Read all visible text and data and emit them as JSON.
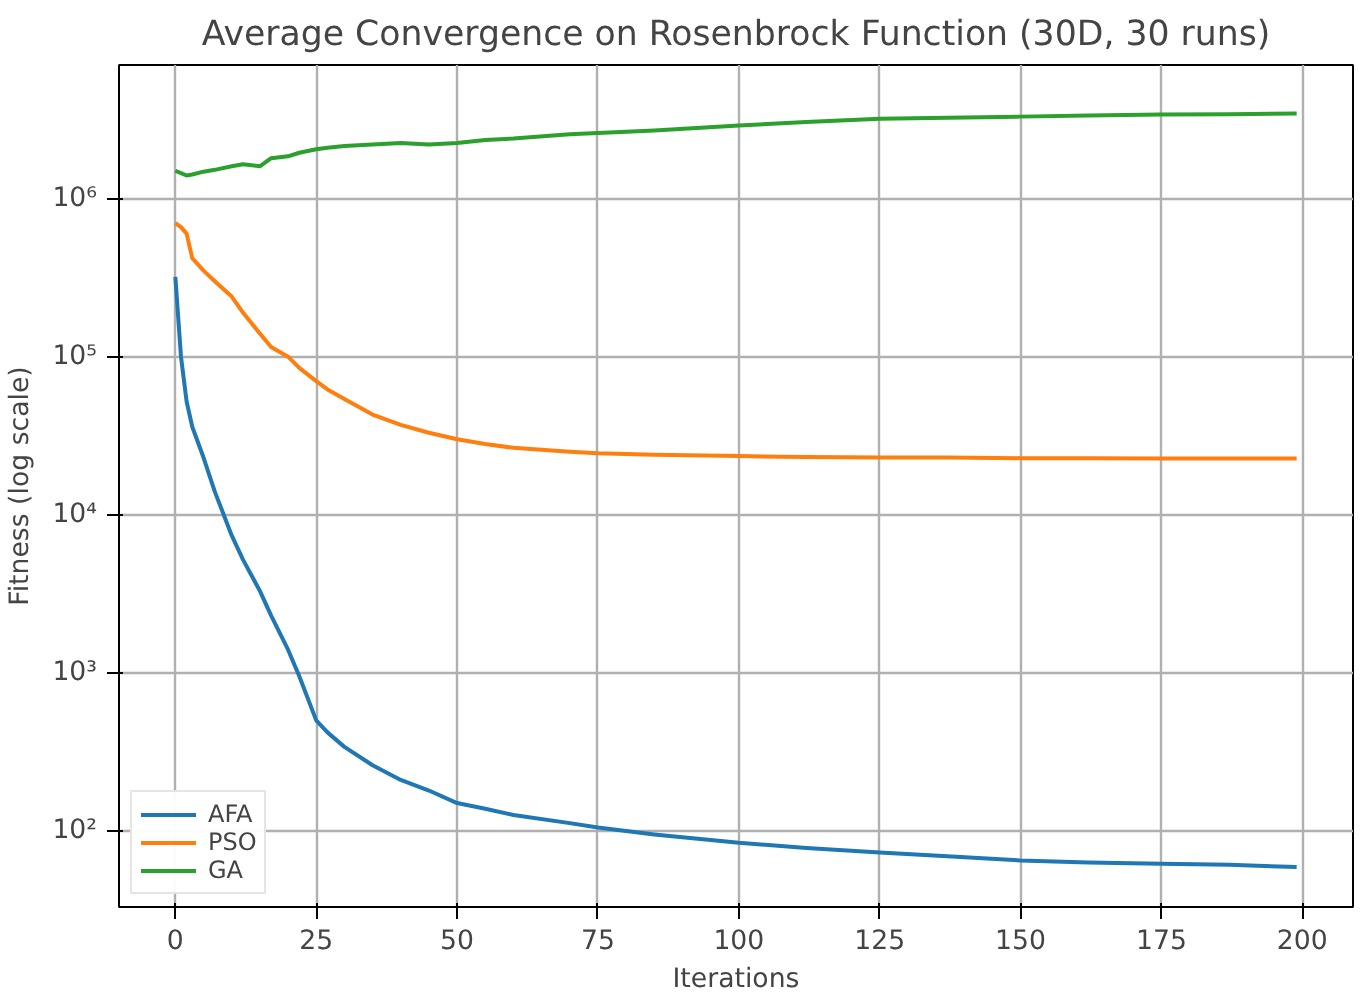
{
  "chart_data": {
    "type": "line",
    "title": "Average Convergence on Rosenbrock Function (30D, 30 runs)",
    "xlabel": "Iterations",
    "ylabel": "Fitness (log scale)",
    "x": [
      0,
      1,
      2,
      3,
      5,
      7,
      10,
      12,
      15,
      17,
      20,
      22,
      25,
      27,
      30,
      35,
      40,
      45,
      50,
      55,
      60,
      70,
      75,
      85,
      100,
      112,
      125,
      137,
      150,
      162,
      175,
      187,
      199
    ],
    "series": [
      {
        "name": "AFA",
        "color": "#1f77b4",
        "values": [
          320000,
          100000,
          52000,
          36000,
          23000,
          14000,
          7400,
          5200,
          3300,
          2300,
          1400,
          950,
          500,
          420,
          340,
          260,
          210,
          180,
          150,
          138,
          126,
          112,
          105,
          95,
          84,
          78,
          73,
          69,
          65,
          63,
          62,
          61,
          59
        ]
      },
      {
        "name": "PSO",
        "color": "#ff7f0e",
        "values": [
          700000,
          660000,
          600000,
          420000,
          350000,
          300000,
          240000,
          190000,
          140000,
          115000,
          100000,
          85000,
          70000,
          62000,
          54000,
          43000,
          37000,
          33000,
          30000,
          28000,
          26500,
          25000,
          24500,
          24000,
          23500,
          23200,
          23000,
          23000,
          22800,
          22800,
          22700,
          22700,
          22700
        ]
      },
      {
        "name": "GA",
        "color": "#2ca02c",
        "values": [
          1500000,
          1450000,
          1400000,
          1420000,
          1480000,
          1520000,
          1600000,
          1650000,
          1600000,
          1800000,
          1850000,
          1950000,
          2050000,
          2100000,
          2150000,
          2200000,
          2250000,
          2200000,
          2250000,
          2350000,
          2400000,
          2550000,
          2600000,
          2700000,
          2900000,
          3050000,
          3200000,
          3250000,
          3300000,
          3350000,
          3400000,
          3420000,
          3450000
        ]
      }
    ],
    "xlim": [
      -10,
      209
    ],
    "ylim": [
      33,
      7000000
    ],
    "xticks": [
      0,
      25,
      50,
      75,
      100,
      125,
      150,
      175,
      200
    ],
    "yticks": [
      {
        "value": 100,
        "label": "10²"
      },
      {
        "value": 1000,
        "label": "10³"
      },
      {
        "value": 10000,
        "label": "10⁴"
      },
      {
        "value": 100000,
        "label": "10⁵"
      },
      {
        "value": 1000000,
        "label": "10⁶"
      }
    ],
    "log": "y",
    "grid": true,
    "legend": "bottom left",
    "marker": "none",
    "line_style": "solid"
  }
}
